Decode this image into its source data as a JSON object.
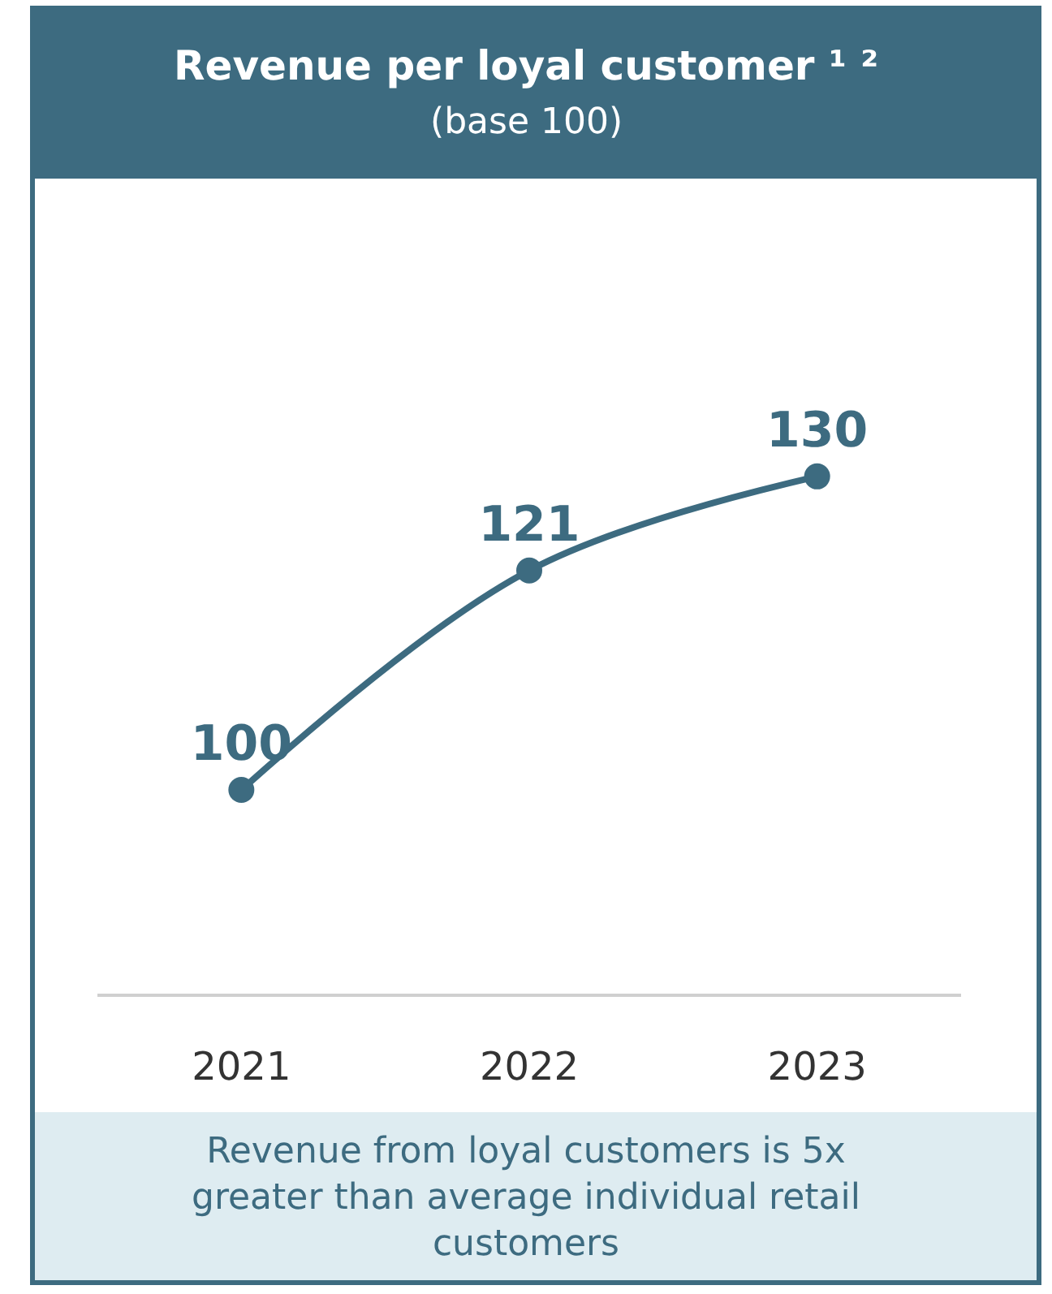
{
  "chart_data": {
    "type": "line",
    "title": "Revenue per loyal customer ¹ ²",
    "subtitle": "(base 100)",
    "categories": [
      "2021",
      "2022",
      "2023"
    ],
    "series": [
      {
        "color": "#3d6b80",
        "values": [
          100,
          121,
          130
        ]
      }
    ],
    "data_labels": true,
    "marker": "circle",
    "line_style": "solid",
    "tick_labels": "x",
    "annotations": [
      "Revenue from loyal customers is 5x greater than average individual retail customers"
    ]
  }
}
